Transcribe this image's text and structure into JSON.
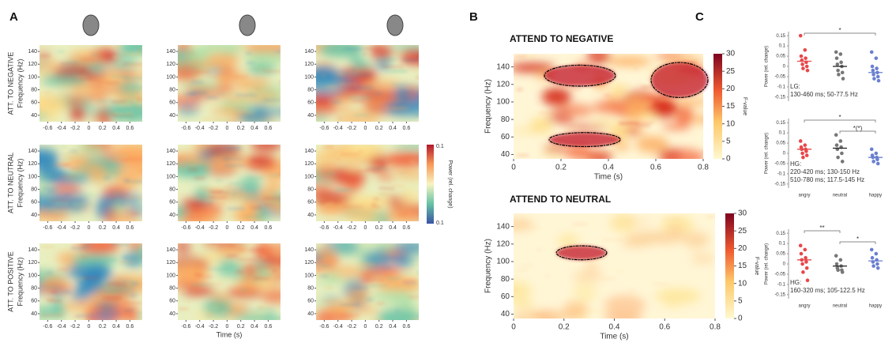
{
  "panel_labels": [
    "A",
    "B",
    "C"
  ],
  "chart_data": [
    {
      "type": "heatmap-grid",
      "rows": [
        "ATT. TO NEGATIVE",
        "ATT. TO NEUTRAL",
        "ATT. TO POSITIVE"
      ],
      "ylabel": "Frequency (Hz)",
      "xlabel": "Time (s)",
      "xlim": [
        -0.72,
        0.78
      ],
      "xticks": [
        -0.6,
        -0.4,
        -0.2,
        0,
        0.2,
        0.4,
        0.6
      ],
      "ylim": [
        30,
        150
      ],
      "yticks": [
        40,
        60,
        80,
        100,
        120,
        140
      ],
      "colorbar_label": "Power (rel. change)",
      "colorbar_ticks": [
        "0.1",
        "0.1"
      ]
    },
    {
      "type": "heatmap",
      "title": "ATTEND TO NEGATIVE",
      "xlabel": "Time (s)",
      "ylabel": "Frequency (Hz)",
      "xlim": [
        0,
        0.8
      ],
      "xticks": [
        0,
        0.2,
        0.4,
        0.6,
        0.8
      ],
      "ylim": [
        35,
        155
      ],
      "yticks": [
        40,
        60,
        80,
        100,
        120,
        140
      ],
      "colorbar_label": "F-value",
      "clim": [
        0,
        30
      ],
      "colorbar_ticks": [
        0,
        5,
        10,
        15,
        20,
        25,
        30
      ]
    },
    {
      "type": "heatmap",
      "title": "ATTEND TO NEUTRAL",
      "xlabel": "Time (s)",
      "ylabel": "Frequency (Hz)",
      "xlim": [
        0,
        0.8
      ],
      "xticks": [
        0,
        0.2,
        0.4,
        0.6,
        0.8
      ],
      "ylim": [
        35,
        155
      ],
      "yticks": [
        40,
        60,
        80,
        100,
        120,
        140
      ],
      "colorbar_label": "F-value",
      "clim": [
        0,
        30
      ],
      "colorbar_ticks": [
        0,
        5,
        10,
        15,
        20,
        25,
        30
      ]
    },
    {
      "type": "strip",
      "ylabel": "Power (rel. change)",
      "ylim": [
        -0.17,
        0.17
      ],
      "yticks": [
        0.15,
        0.1,
        0.05,
        0,
        -0.05,
        -0.1,
        -0.15
      ],
      "annotation": [
        "LG:",
        "130-460 ms; 50-77.5 Hz"
      ],
      "series": [
        {
          "name": "angry",
          "color": "#e8474a",
          "values": [
            0.15,
            0.08,
            0.05,
            0.04,
            0.03,
            0.02,
            0.01,
            0.0,
            -0.01,
            -0.02
          ],
          "mean": 0.025
        },
        {
          "name": "neutral",
          "color": "#777777",
          "values": [
            0.07,
            0.06,
            0.04,
            0.02,
            0.01,
            0.0,
            -0.02,
            -0.03,
            -0.04,
            -0.06
          ],
          "mean": 0.0
        },
        {
          "name": "happy",
          "color": "#6a7fd0",
          "values": [
            0.07,
            0.04,
            0.0,
            -0.01,
            -0.02,
            -0.03,
            -0.04,
            -0.05,
            -0.06,
            -0.07
          ],
          "mean": -0.03
        }
      ],
      "significance": [
        {
          "pair": [
            "angry",
            "happy"
          ],
          "label": "*"
        }
      ]
    },
    {
      "type": "strip",
      "ylabel": "Power (rel. change)",
      "ylim": [
        -0.17,
        0.17
      ],
      "yticks": [
        0.15,
        0.1,
        0.05,
        0,
        -0.05,
        -0.1,
        -0.15
      ],
      "annotation": [
        "HG:",
        "220-420 ms; 130-150 Hz",
        "510-780 ms; 117.5-145 Hz"
      ],
      "categories": [
        "angry",
        "neutral",
        "happy"
      ],
      "series": [
        {
          "name": "angry",
          "color": "#e8474a",
          "values": [
            0.06,
            0.04,
            0.03,
            0.02,
            0.02,
            0.01,
            0.0,
            -0.01,
            -0.02
          ],
          "mean": 0.02
        },
        {
          "name": "neutral",
          "color": "#777777",
          "values": [
            0.09,
            0.06,
            0.04,
            0.03,
            0.02,
            0.0,
            -0.02,
            -0.04
          ],
          "mean": 0.025
        },
        {
          "name": "happy",
          "color": "#6a7fd0",
          "values": [
            0.02,
            0.0,
            -0.01,
            -0.02,
            -0.02,
            -0.03,
            -0.04,
            -0.05
          ],
          "mean": -0.02
        }
      ],
      "significance": [
        {
          "pair": [
            "angry",
            "happy"
          ],
          "label": "*"
        },
        {
          "pair": [
            "neutral",
            "happy"
          ],
          "label": "*(*)"
        }
      ]
    },
    {
      "type": "strip",
      "ylabel": "Power (rel. change)",
      "ylim": [
        -0.17,
        0.17
      ],
      "yticks": [
        0.15,
        0.1,
        0.05,
        0,
        -0.05,
        -0.1,
        -0.15
      ],
      "annotation": [
        "HG:",
        "160-320 ms; 105-122.5 Hz"
      ],
      "categories": [
        "angry",
        "neutral",
        "happy"
      ],
      "series": [
        {
          "name": "angry",
          "color": "#e8474a",
          "values": [
            0.09,
            0.07,
            0.05,
            0.03,
            0.02,
            0.01,
            0.0,
            -0.02,
            -0.04,
            -0.08
          ],
          "mean": 0.02
        },
        {
          "name": "neutral",
          "color": "#777777",
          "values": [
            0.04,
            0.02,
            0.0,
            -0.01,
            -0.02,
            -0.03,
            -0.03,
            -0.04
          ],
          "mean": -0.01
        },
        {
          "name": "happy",
          "color": "#6a7fd0",
          "values": [
            0.07,
            0.05,
            0.03,
            0.02,
            0.01,
            0.0,
            -0.01,
            -0.02
          ],
          "mean": 0.015
        }
      ],
      "significance": [
        {
          "pair": [
            "angry",
            "neutral"
          ],
          "label": "**"
        },
        {
          "pair": [
            "neutral",
            "happy"
          ],
          "label": "*"
        }
      ]
    }
  ]
}
